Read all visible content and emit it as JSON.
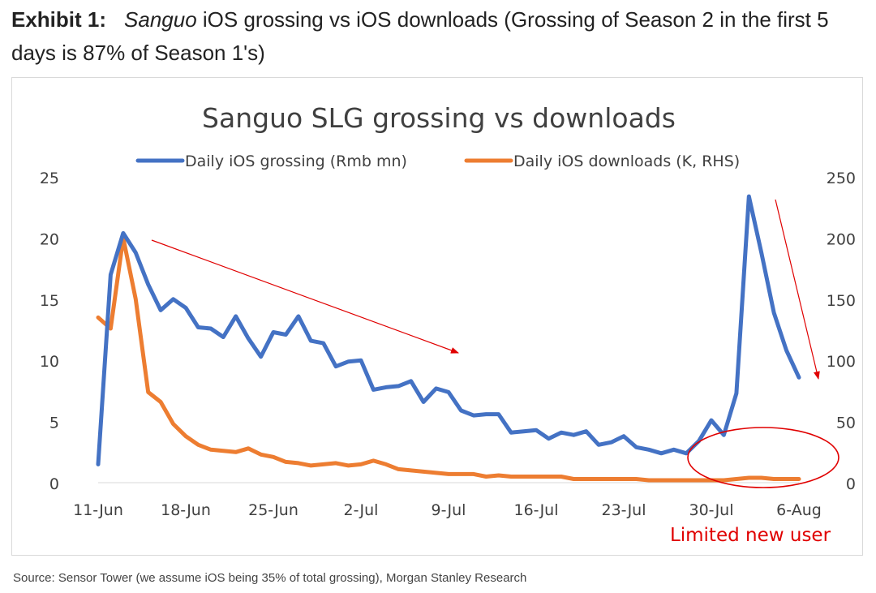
{
  "exhibit": {
    "label": "Exhibit 1:",
    "title_italic": "Sanguo",
    "title_rest": " iOS grossing vs iOS downloads (Grossing of Season 2 in the first 5 days is 87% of Season 1's)"
  },
  "source": "Source: Sensor Tower (we assume iOS being 35% of total grossing), Morgan Stanley Research",
  "annotation": {
    "text": "Limited new user",
    "color": "#e00000"
  },
  "chart_data": {
    "type": "line",
    "title": "Sanguo SLG grossing vs downloads",
    "x_ticks": [
      "11-Jun",
      "18-Jun",
      "25-Jun",
      "2-Jul",
      "9-Jul",
      "16-Jul",
      "23-Jul",
      "30-Jul",
      "6-Aug"
    ],
    "x_tick_days": [
      0,
      7,
      14,
      21,
      28,
      35,
      42,
      49,
      56
    ],
    "ylim_left": [
      0,
      25
    ],
    "yticks_left": [
      0,
      5,
      10,
      15,
      20,
      25
    ],
    "ylim_right": [
      0,
      250
    ],
    "yticks_right": [
      0,
      50,
      100,
      150,
      200,
      250
    ],
    "legend_position": "top",
    "grid": false,
    "series": [
      {
        "name": "Daily iOS grossing (Rmb mn)",
        "axis": "left",
        "color": "#4472c4",
        "values": [
          1.5,
          17.0,
          20.4,
          18.8,
          16.2,
          14.1,
          15.0,
          14.3,
          12.7,
          12.6,
          11.9,
          13.6,
          11.8,
          10.3,
          12.3,
          12.1,
          13.6,
          11.6,
          11.4,
          9.5,
          9.9,
          10.0,
          7.6,
          7.8,
          7.9,
          8.3,
          6.6,
          7.7,
          7.4,
          5.9,
          5.5,
          5.6,
          5.6,
          4.1,
          4.2,
          4.3,
          3.6,
          4.1,
          3.9,
          4.2,
          3.1,
          3.3,
          3.8,
          2.9,
          2.7,
          2.4,
          2.7,
          2.4,
          3.4,
          5.1,
          3.9,
          7.3,
          23.4,
          18.8,
          13.9,
          10.8,
          8.6
        ]
      },
      {
        "name": "Daily iOS downloads (K, RHS)",
        "axis": "right",
        "color": "#ed7d31",
        "values": [
          135,
          126,
          200,
          150,
          74,
          66,
          48,
          38,
          31,
          27,
          26,
          25,
          28,
          23,
          21,
          17,
          16,
          14,
          15,
          16,
          14,
          15,
          18,
          15,
          11,
          10,
          9,
          8,
          7,
          7,
          7,
          5,
          6,
          5,
          5,
          5,
          5,
          5,
          3,
          3,
          3,
          3,
          3,
          3,
          2,
          2,
          2,
          2,
          2,
          2,
          2,
          3,
          4,
          4,
          3,
          3,
          3
        ]
      }
    ]
  }
}
